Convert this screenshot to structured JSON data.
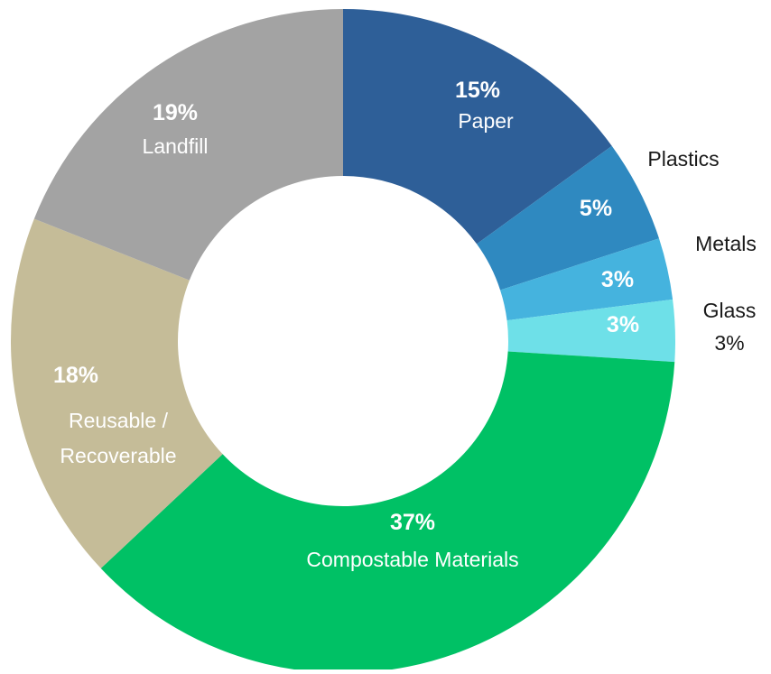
{
  "chart_data": {
    "type": "pie",
    "title": "",
    "slices": [
      {
        "label": "Paper",
        "value": 15,
        "pct_text": "15%",
        "color": "#2e5f98",
        "text_color": "#ffffff",
        "label_lines": [
          "Paper"
        ]
      },
      {
        "label": "Plastics",
        "value": 5,
        "pct_text": "5%",
        "color": "#2f89c0",
        "text_color": "#ffffff",
        "label_lines": [
          "Plastics"
        ]
      },
      {
        "label": "Metals",
        "value": 3,
        "pct_text": "3%",
        "color": "#45b3de",
        "text_color": "#ffffff",
        "label_lines": [
          "Metals"
        ]
      },
      {
        "label": "Glass",
        "value": 3,
        "pct_text": "3%",
        "color": "#6ee0e8",
        "text_color": "#ffffff",
        "label_lines": [
          "Glass"
        ],
        "outside_pct_text": "3%"
      },
      {
        "label": "Compostable Materials",
        "value": 37,
        "pct_text": "37%",
        "color": "#00c165",
        "text_color": "#ffffff",
        "label_lines": [
          "Compostable Materials"
        ]
      },
      {
        "label": "Reusable / Recoverable",
        "value": 18,
        "pct_text": "18%",
        "color": "#c5bc98",
        "text_color": "#ffffff",
        "label_lines": [
          "Reusable /",
          "Recoverable"
        ]
      },
      {
        "label": "Landfill",
        "value": 19,
        "pct_text": "19%",
        "color": "#a3a3a3",
        "text_color": "#ffffff",
        "label_lines": [
          "Landfill"
        ]
      }
    ],
    "donut": true,
    "legend": "none",
    "outside_label_color": "#1a1a1a"
  }
}
